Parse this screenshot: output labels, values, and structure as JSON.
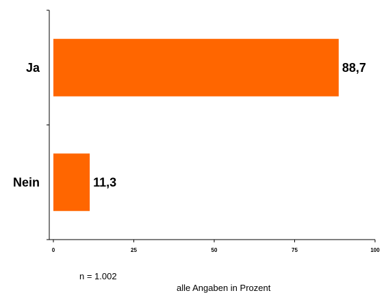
{
  "chart_data": {
    "type": "bar",
    "orientation": "horizontal",
    "categories": [
      "Ja",
      "Nein"
    ],
    "values": [
      88.7,
      11.3
    ],
    "value_labels": [
      "88,7",
      "11,3"
    ],
    "xlim": [
      0,
      100
    ],
    "xticks": [
      "0",
      "25",
      "50",
      "75",
      "100"
    ],
    "title": "",
    "xlabel": "",
    "ylabel": "",
    "grid": false,
    "bar_color": "#FF6600"
  },
  "notes": {
    "sample_size": "n = 1.002",
    "unit": "alle Angaben in Prozent"
  }
}
